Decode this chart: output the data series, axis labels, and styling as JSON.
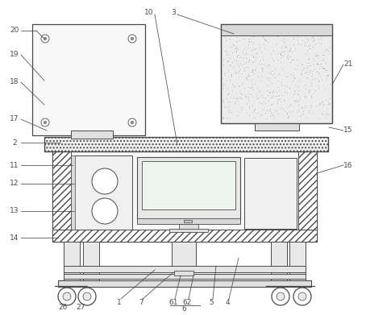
{
  "bg_color": "#ffffff",
  "line_color": "#4a4a4a",
  "ann_color": "#4a4a4a",
  "figsize": [
    4.54,
    3.91
  ],
  "dpi": 100,
  "ann_lw": 0.55,
  "ann_fs": 6.5
}
